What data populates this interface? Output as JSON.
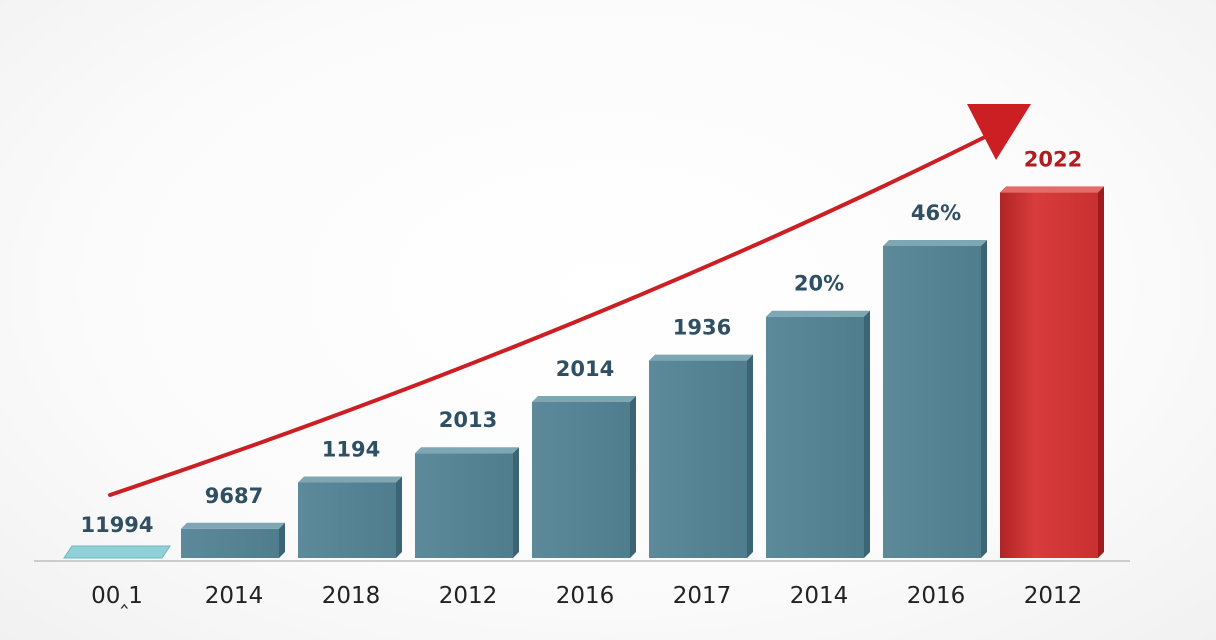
{
  "chart_data": {
    "type": "bar",
    "categories": [
      "00‸1",
      "2014",
      "2018",
      "2012",
      "2016",
      "2017",
      "2014",
      "2016",
      "2012"
    ],
    "data_labels": [
      "11994",
      "9687",
      "1194",
      "2013",
      "2014",
      "1936",
      "20%",
      "46%",
      "2022"
    ],
    "values": [
      1,
      12,
      31,
      43,
      64,
      81,
      99,
      128,
      150
    ],
    "ylim": [
      0,
      160
    ],
    "title": "",
    "xlabel": "",
    "ylabel": "",
    "grid": false,
    "legend": "none",
    "trend_arrow": true
  },
  "colors": {
    "bar_front": "#4f7d8e",
    "bar_top": "#7fa6b3",
    "bar_side": "#3b6474",
    "first_bar": "#8fd0d9",
    "highlight_bar": "#d83c3c",
    "highlight_label": "#b01c22",
    "label_text": "#2f4f63",
    "arrow": "#cc1f24",
    "axis": "#cccccc"
  }
}
